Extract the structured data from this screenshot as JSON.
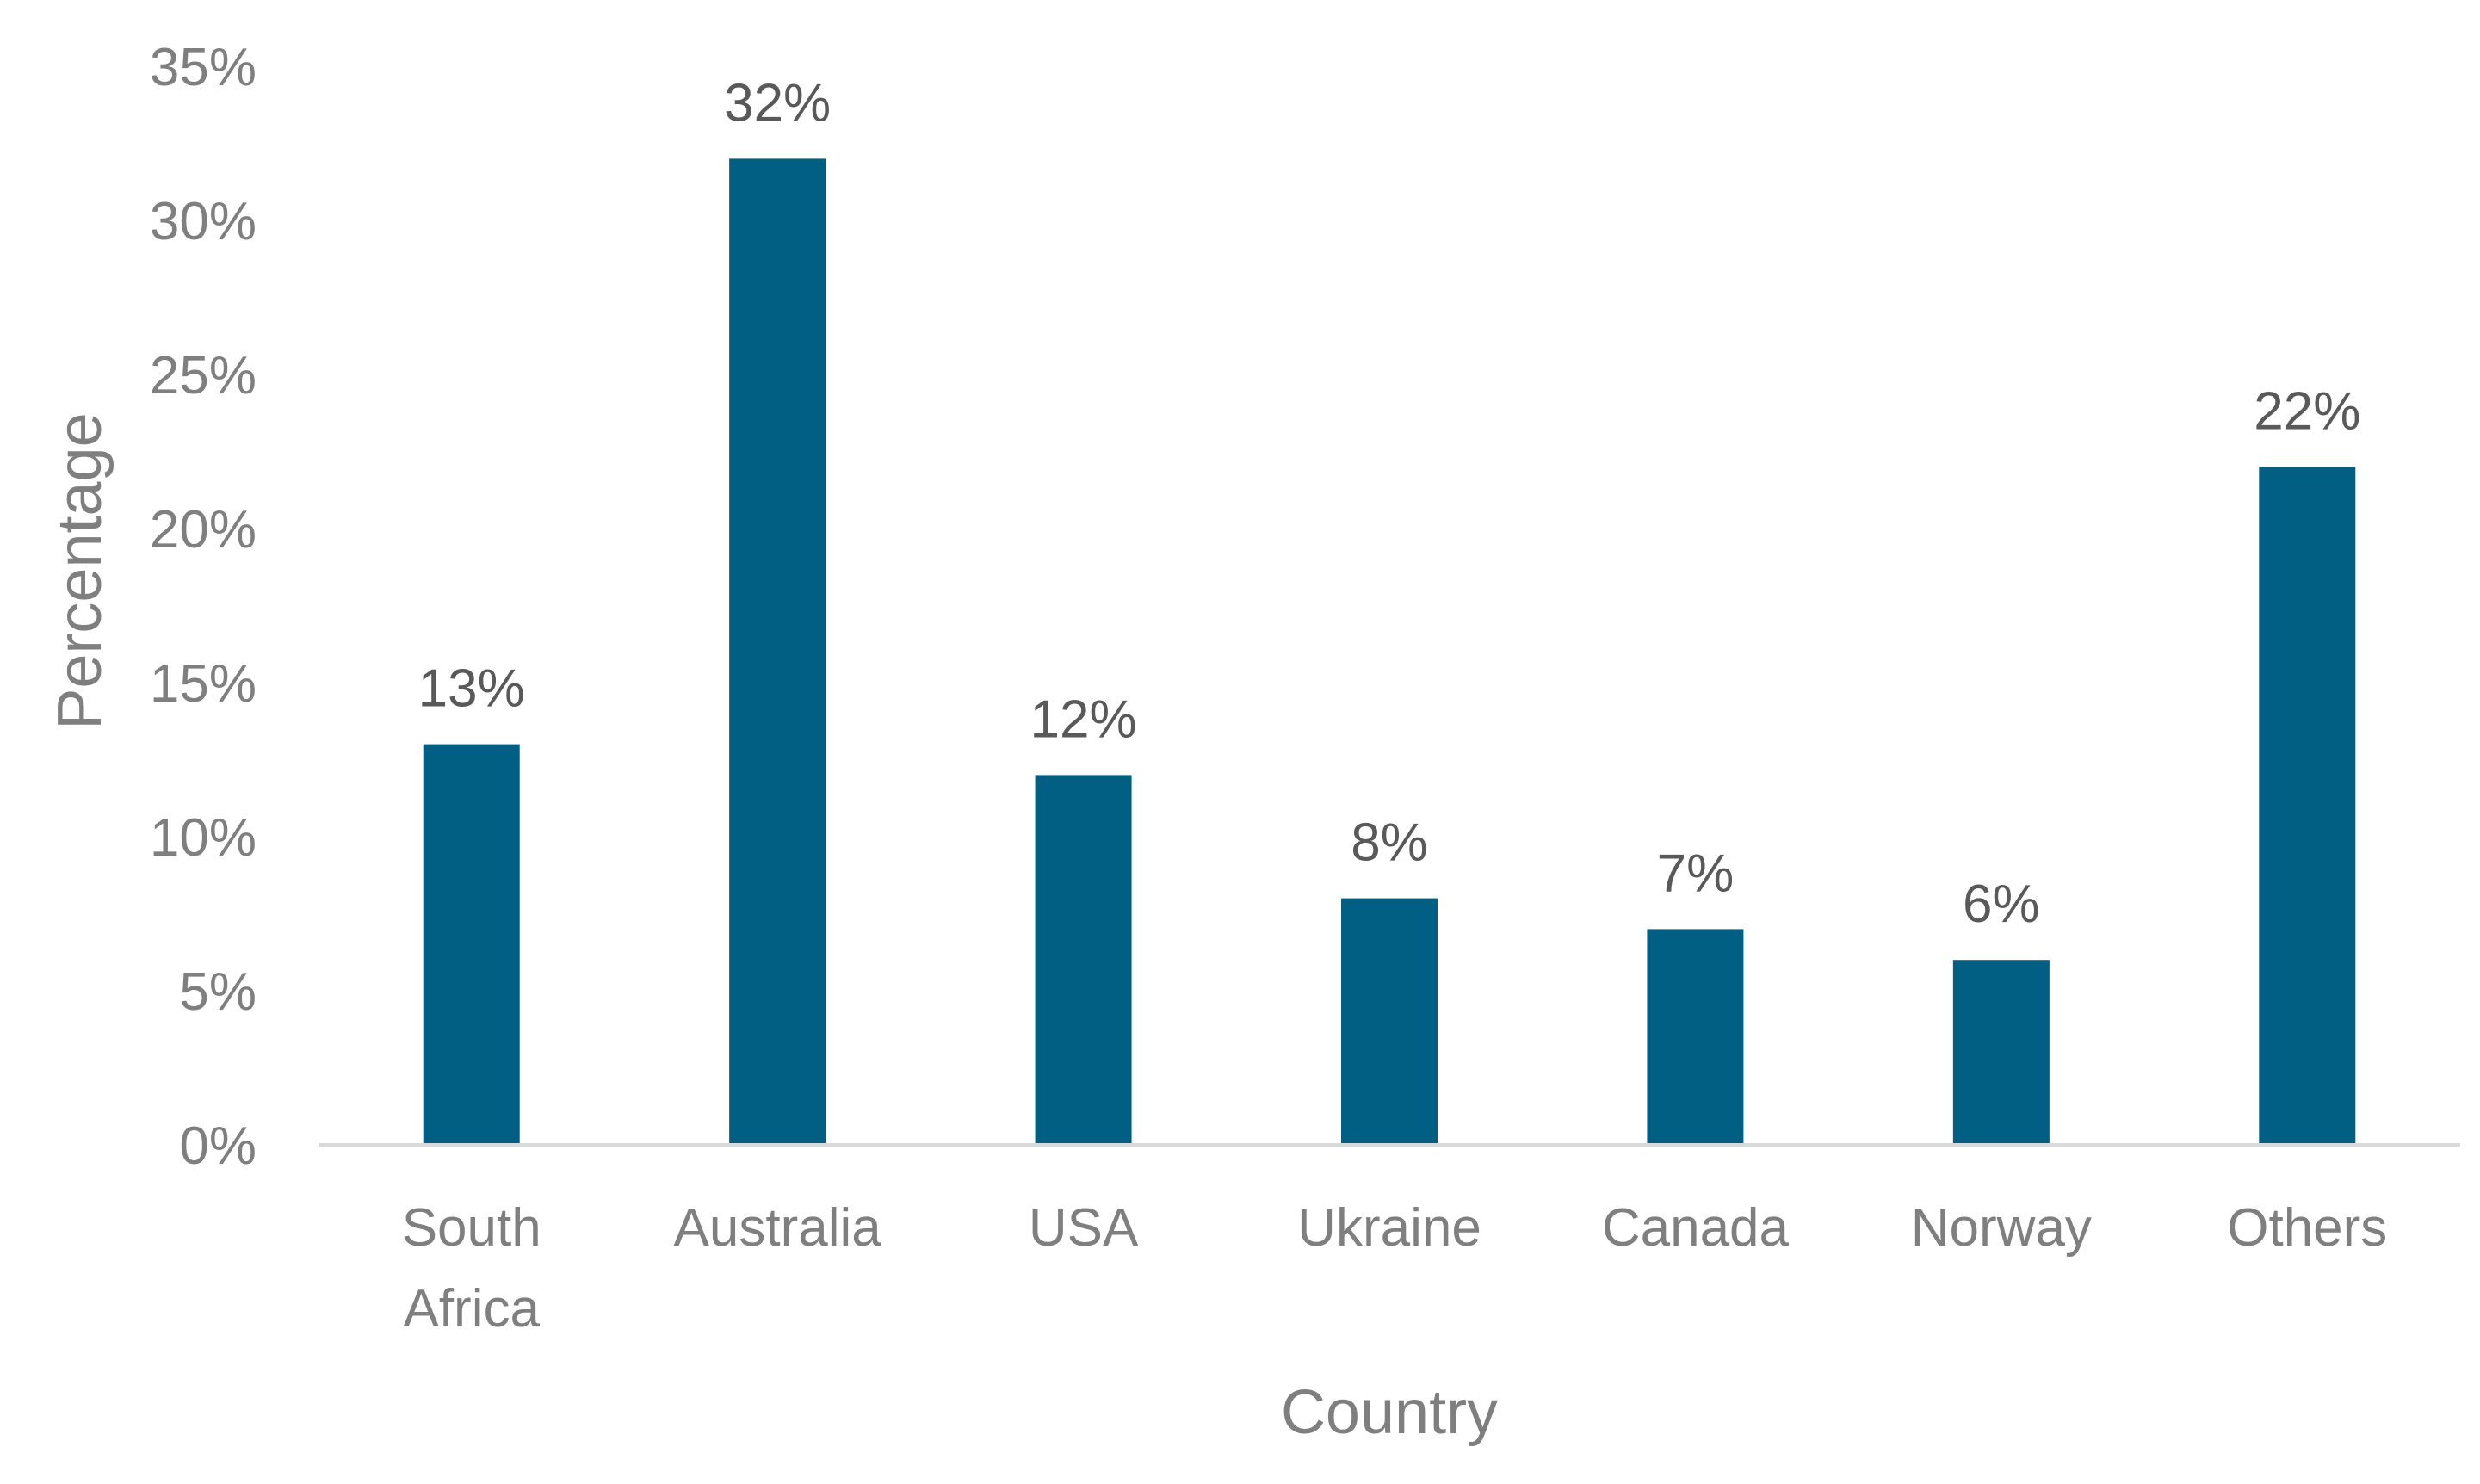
{
  "chart_data": {
    "type": "bar",
    "categories": [
      [
        "South",
        "Africa"
      ],
      [
        "Australia"
      ],
      [
        "USA"
      ],
      [
        "Ukraine"
      ],
      [
        "Canada"
      ],
      [
        "Norway"
      ],
      [
        "Others"
      ]
    ],
    "values": [
      13,
      32,
      12,
      8,
      7,
      6,
      22
    ],
    "data_labels": [
      "13%",
      "32%",
      "12%",
      "8%",
      "7%",
      "6%",
      "22%"
    ],
    "xlabel": "Country",
    "ylabel": "Percentage",
    "ylim": [
      0,
      35
    ],
    "yticks": [
      0,
      5,
      10,
      15,
      20,
      25,
      30,
      35
    ],
    "ytick_labels": [
      "0%",
      "5%",
      "10%",
      "15%",
      "20%",
      "25%",
      "30%",
      "35%"
    ],
    "grid": false,
    "legend": "none",
    "bar_color": "#005f83",
    "axis_color": "#d9d9d9",
    "text_color": "#7f7f7f",
    "data_label_color": "#595959"
  }
}
